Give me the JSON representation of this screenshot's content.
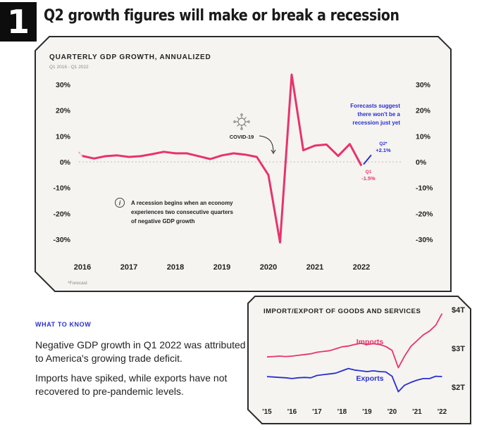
{
  "badge": "1",
  "headline": "Q2 growth figures will make or break a recession",
  "colors": {
    "accent": "#e8336b",
    "blue": "#2a2fd0",
    "panel": "#f5f4f1",
    "border": "#2b2b2b"
  },
  "chart_data": [
    {
      "type": "line",
      "title": "QUARTERLY GDP GROWTH, ANNUALIZED",
      "subtitle": "Q1 2016 - Q1 2022",
      "ylim": [
        -30,
        30
      ],
      "y_ticks": [
        "30%",
        "20%",
        "10%",
        "0%",
        "-10%",
        "-20%",
        "-30%"
      ],
      "x_ticks": [
        "2016",
        "2017",
        "2018",
        "2019",
        "2020",
        "2021",
        "2022"
      ],
      "series": [
        {
          "name": "GDP growth",
          "x": [
            2016.0,
            2016.25,
            2016.5,
            2016.75,
            2017.0,
            2017.25,
            2017.5,
            2017.75,
            2018.0,
            2018.25,
            2018.5,
            2018.75,
            2019.0,
            2019.25,
            2019.5,
            2019.75,
            2020.0,
            2020.25,
            2020.5,
            2020.75,
            2021.0,
            2021.25,
            2021.5,
            2021.75,
            2022.0
          ],
          "values": [
            2.3,
            1.3,
            2.2,
            2.5,
            1.9,
            2.2,
            3.0,
            3.9,
            3.3,
            3.3,
            2.2,
            1.1,
            2.5,
            3.3,
            2.8,
            1.9,
            -5.1,
            -31.2,
            33.8,
            4.5,
            6.3,
            6.7,
            2.3,
            6.9,
            -1.5
          ]
        }
      ],
      "forecast": {
        "label_period": "Q2*",
        "label_value": "+2.1%",
        "value": 2.1
      },
      "q1_label": {
        "period": "Q1",
        "value": "-1.5%"
      },
      "annotations": {
        "covid": "COVID-19",
        "forecast_note": [
          "Forecasts suggest",
          "there won't be a",
          "recession just yet"
        ],
        "recession_note": [
          "A recession begins when an economy",
          "experiences two consecutive quarters",
          "of negative GDP growth"
        ],
        "info_icon": "i"
      },
      "footnote": "*Forecast"
    },
    {
      "type": "line",
      "title": "IMPORT/EXPORT OF GOODS AND SERVICES",
      "ylim": [
        1.6,
        4.2
      ],
      "y_ticks": [
        "$4T",
        "$3T",
        "$2T"
      ],
      "y_tick_values": [
        4,
        3,
        2
      ],
      "x_ticks": [
        "'15",
        "'16",
        "'17",
        "'18",
        "'19",
        "'20",
        "'21",
        "'22"
      ],
      "series": [
        {
          "name": "Imports",
          "x": [
            2015,
            2015.25,
            2015.5,
            2015.75,
            2016,
            2016.25,
            2016.5,
            2016.75,
            2017,
            2017.25,
            2017.5,
            2017.75,
            2018,
            2018.25,
            2018.5,
            2018.75,
            2019,
            2019.25,
            2019.5,
            2019.75,
            2020,
            2020.25,
            2020.5,
            2020.75,
            2021,
            2021.25,
            2021.5,
            2021.75,
            2022
          ],
          "values": [
            2.78,
            2.79,
            2.8,
            2.79,
            2.8,
            2.82,
            2.84,
            2.86,
            2.9,
            2.92,
            2.94,
            2.99,
            3.04,
            3.06,
            3.1,
            3.13,
            3.1,
            3.12,
            3.1,
            3.05,
            2.95,
            2.5,
            2.8,
            3.05,
            3.2,
            3.35,
            3.45,
            3.6,
            3.9
          ]
        },
        {
          "name": "Exports",
          "x": [
            2015,
            2015.25,
            2015.5,
            2015.75,
            2016,
            2016.25,
            2016.5,
            2016.75,
            2017,
            2017.25,
            2017.5,
            2017.75,
            2018,
            2018.25,
            2018.5,
            2018.75,
            2019,
            2019.25,
            2019.5,
            2019.75,
            2020,
            2020.25,
            2020.5,
            2020.75,
            2021,
            2021.25,
            2021.5,
            2021.75,
            2022
          ],
          "values": [
            2.27,
            2.26,
            2.25,
            2.24,
            2.22,
            2.24,
            2.25,
            2.24,
            2.3,
            2.32,
            2.34,
            2.36,
            2.42,
            2.48,
            2.44,
            2.42,
            2.4,
            2.42,
            2.4,
            2.39,
            2.28,
            1.88,
            2.05,
            2.12,
            2.18,
            2.22,
            2.22,
            2.28,
            2.27
          ]
        }
      ]
    }
  ],
  "what_to_know": {
    "label": "WHAT TO KNOW",
    "p1": "Negative GDP growth in Q1 2022 was attributed to America's growing trade deficit.",
    "p2": "Imports have spiked, while exports have not recovered to pre-pandemic levels."
  }
}
